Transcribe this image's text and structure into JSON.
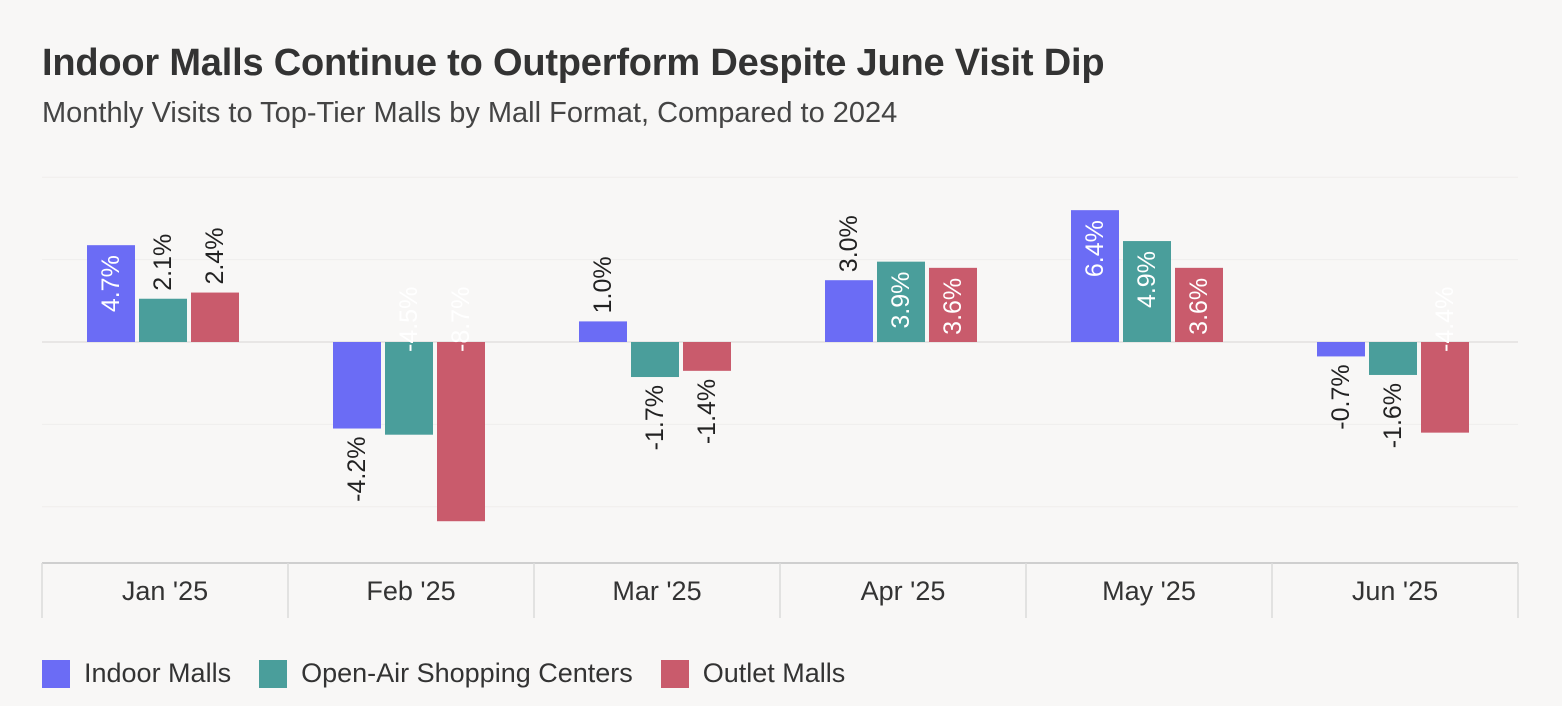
{
  "title": "Indoor Malls Continue to Outperform Despite June Visit Dip",
  "subtitle": "Monthly Visits to Top-Tier Malls by Mall Format, Compared to 2024",
  "chart_data": {
    "type": "bar",
    "categories": [
      "Jan '25",
      "Feb '25",
      "Mar '25",
      "Apr '25",
      "May '25",
      "Jun '25"
    ],
    "series": [
      {
        "name": "Indoor Malls",
        "color": "#6b6cf5",
        "values": [
          4.7,
          -4.2,
          1.0,
          3.0,
          6.4,
          -0.7
        ],
        "labels": [
          "4.7%",
          "-4.2%",
          "1.0%",
          "3.0%",
          "6.4%",
          "-0.7%"
        ]
      },
      {
        "name": "Open-Air Shopping Centers",
        "color": "#4a9e9b",
        "values": [
          2.1,
          -4.5,
          -1.7,
          3.9,
          4.9,
          -1.6
        ],
        "labels": [
          "2.1%",
          "-4.5%",
          "-1.7%",
          "3.9%",
          "4.9%",
          "-1.6%"
        ]
      },
      {
        "name": "Outlet Malls",
        "color": "#c95b6c",
        "values": [
          2.4,
          -8.7,
          -1.4,
          3.6,
          3.6,
          -4.4
        ],
        "labels": [
          "2.4%",
          "-8.7%",
          "-1.4%",
          "3.6%",
          "3.6%",
          "-4.4%"
        ]
      }
    ],
    "ylim": [
      -10,
      8
    ],
    "grid": true,
    "legend_position": "bottom-left"
  },
  "legend": [
    {
      "label": "Indoor Malls",
      "color": "#6b6cf5"
    },
    {
      "label": "Open-Air Shopping Centers",
      "color": "#4a9e9b"
    },
    {
      "label": "Outlet Malls",
      "color": "#c95b6c"
    }
  ]
}
